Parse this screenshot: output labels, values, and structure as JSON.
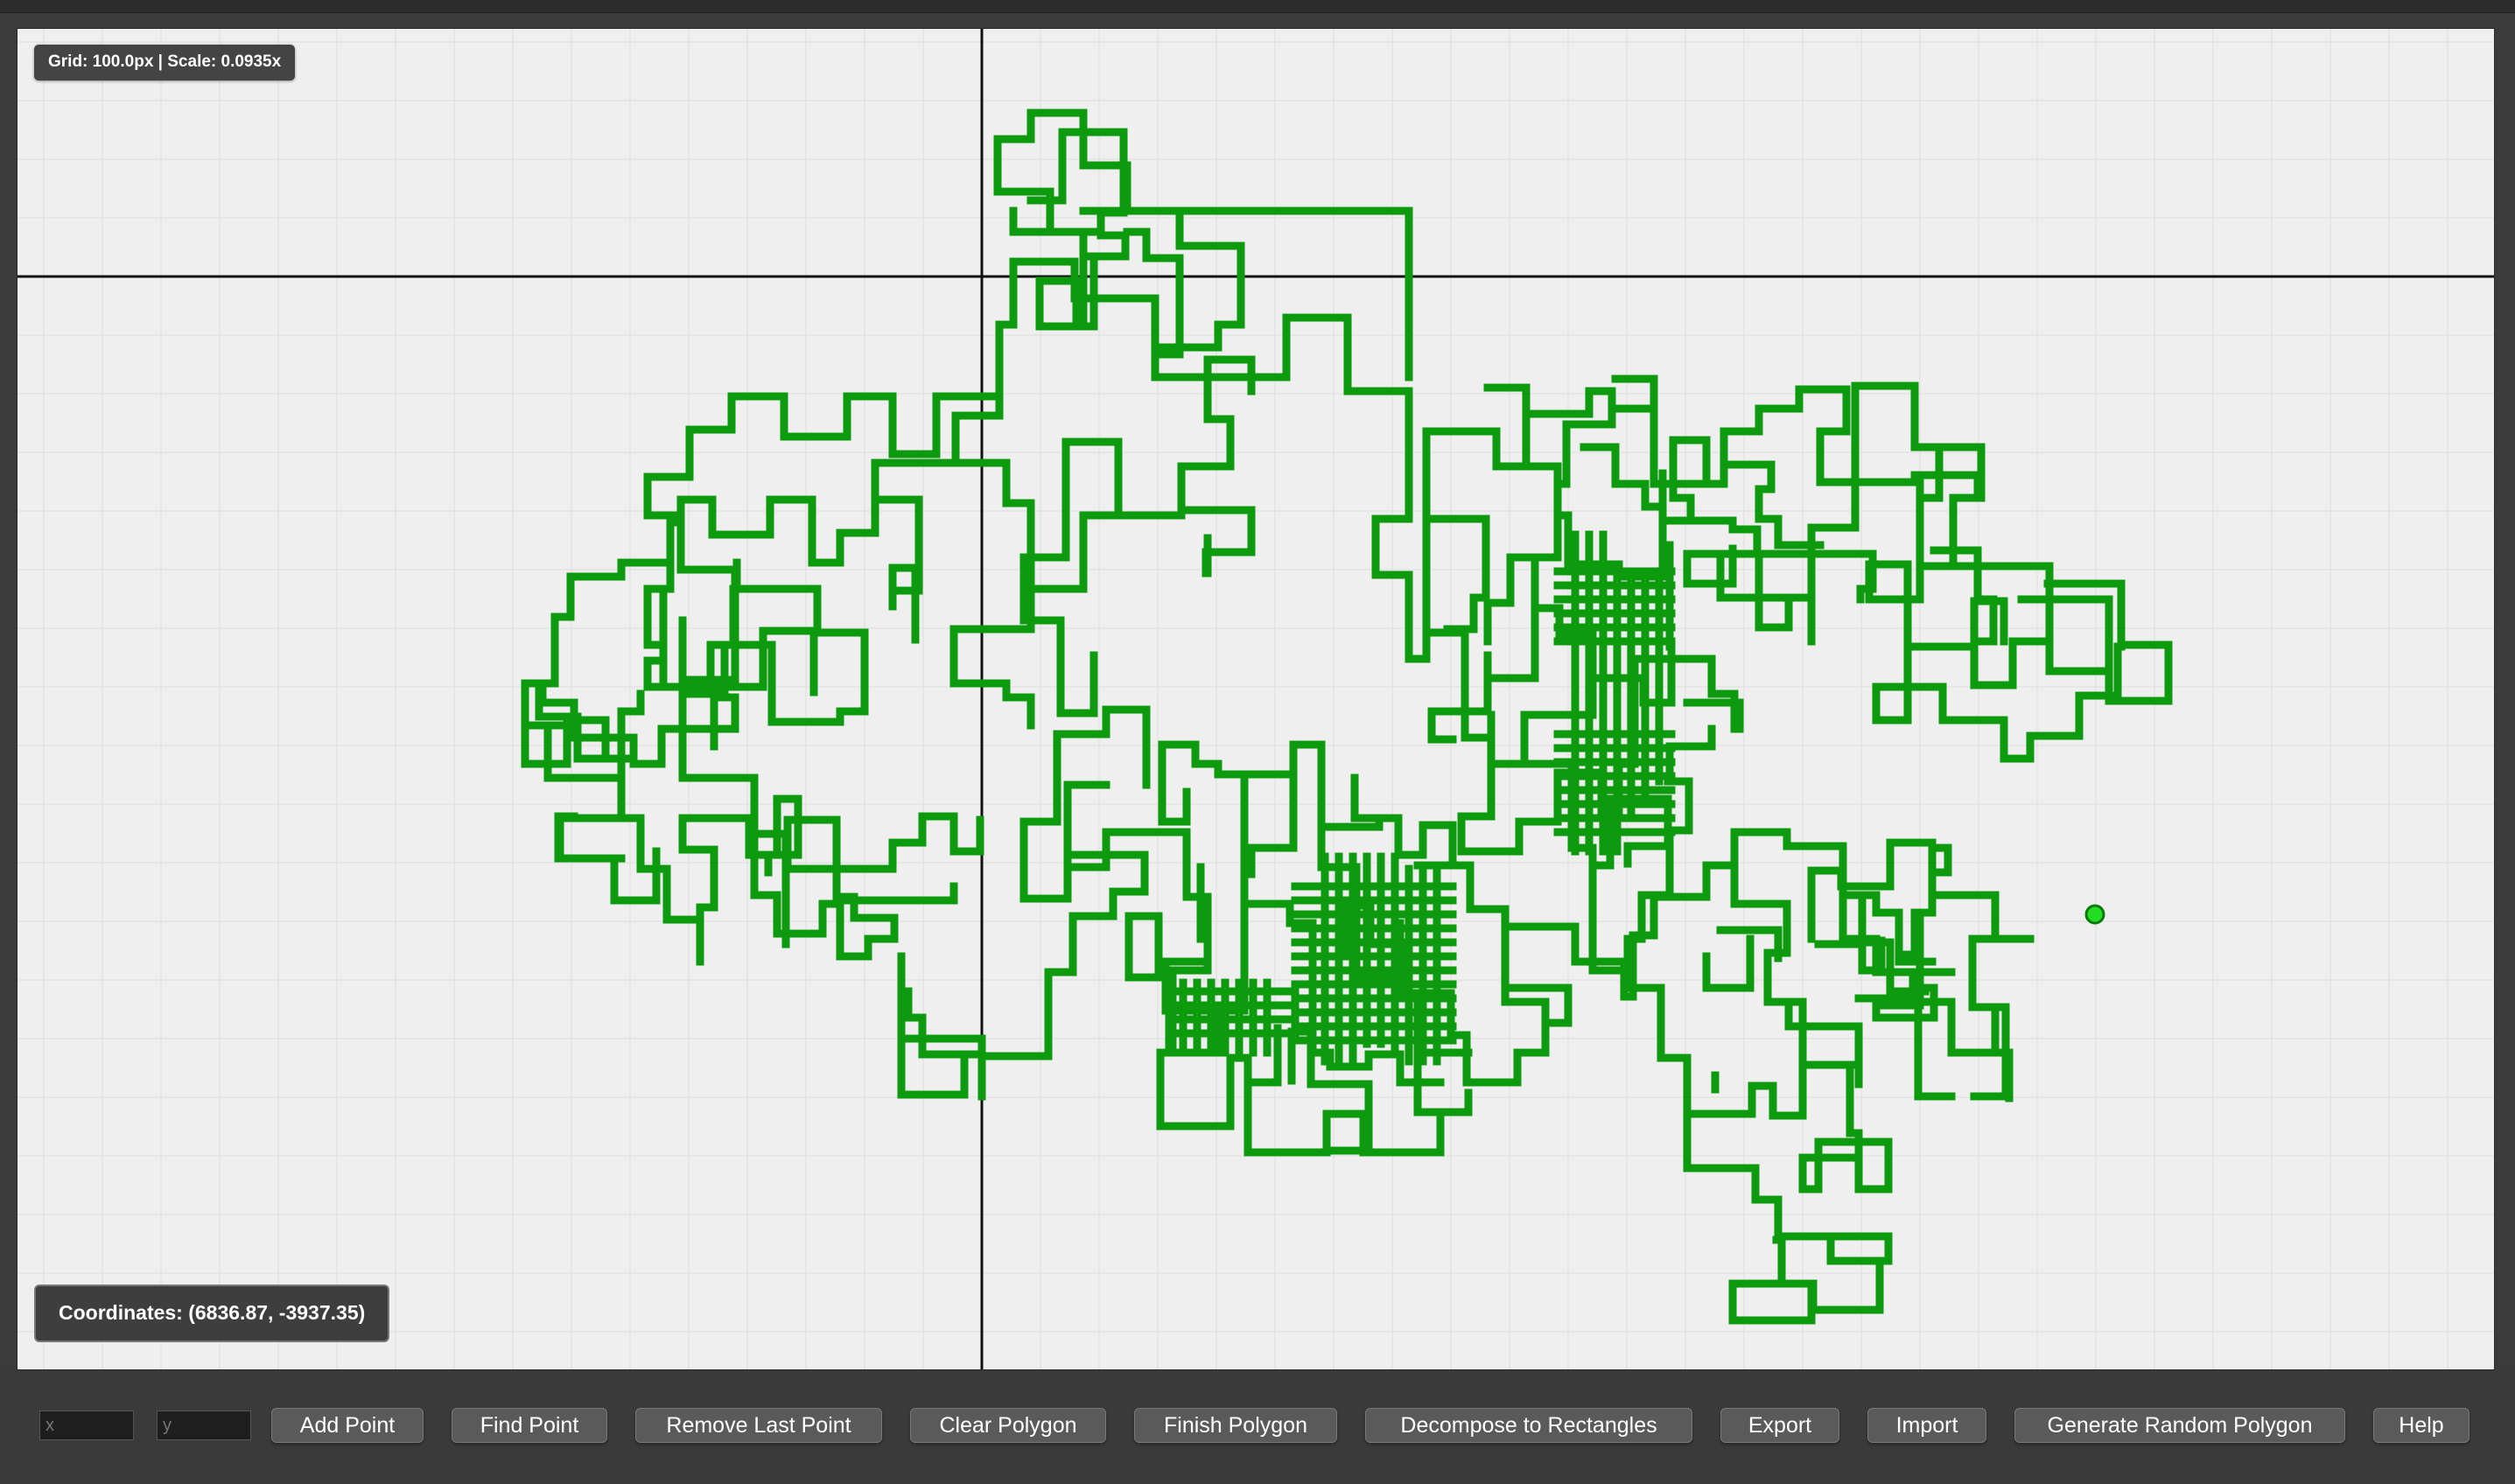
{
  "canvas": {
    "grid_label": "Grid: 100.0px | Scale: 0.0935x",
    "coordinates_label": "Coordinates: (6836.87, -3937.35)",
    "polygon_color": "#0e9a0e",
    "point_color": "#22dd22",
    "background_color": "#efefef",
    "grid_color": "#dcdcdc"
  },
  "toolbar": {
    "x_placeholder": "x",
    "y_placeholder": "y",
    "add_point": "Add Point",
    "find_point": "Find Point",
    "remove_last_point": "Remove Last Point",
    "clear_polygon": "Clear Polygon",
    "finish_polygon": "Finish Polygon",
    "decompose": "Decompose to Rectangles",
    "export": "Export",
    "import": "Import",
    "generate_random": "Generate Random Polygon",
    "help": "Help"
  }
}
